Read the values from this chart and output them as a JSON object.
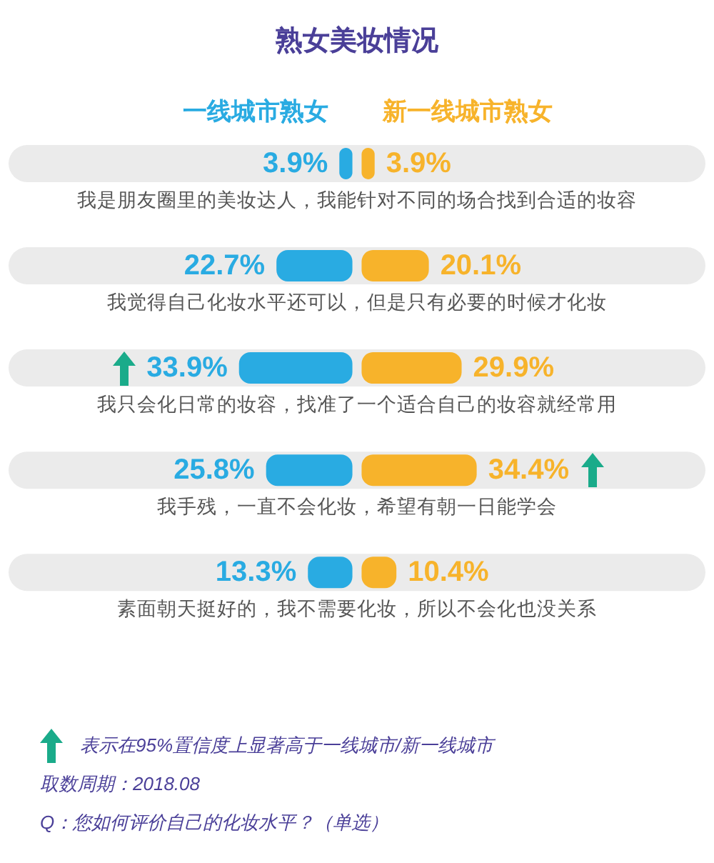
{
  "chart_data": [
    {
      "type": "bar",
      "title": "熟女美妆情况",
      "orientation": "horizontal",
      "categories": [
        "我是朋友圈里的美妆达人，我能针对不同的场合找到合适的妆容",
        "我觉得自己化妆水平还可以，但是只有必要的时候才化妆",
        "我只会化日常的妆容，找准了一个适合自己的妆容就经常用",
        "我手残，一直不会化妆，希望有朝一日能学会",
        "素面朝天挺好的，我不需要化妆，所以不会化也没关系"
      ],
      "series": [
        {
          "name": "一线城市熟女",
          "color": "#29abe2",
          "values": [
            3.9,
            22.7,
            33.9,
            25.8,
            13.3
          ],
          "value_labels": [
            "3.9%",
            "22.7%",
            "33.9%",
            "25.8%",
            "13.3%"
          ]
        }
      ],
      "annotations": [
        "表示在95%置信度上显著高于一线城市/新一线城市",
        "取数周期：2018.08",
        "Q：您如何评价自己的化妆水平？（单选）"
      ]
    },
    {
      "type": "bar",
      "orientation": "horizontal",
      "categories": [
        null,
        null,
        null,
        null,
        null
      ],
      "series": [
        {
          "name": "新一线城市熟女",
          "color": "#f7b32b",
          "values": [
            3.9,
            20.1,
            29.9,
            34.4,
            10.4
          ],
          "value_labels": [
            "3.9%",
            "20.1%",
            "29.9%",
            "34.4%",
            "10.4%"
          ]
        }
      ]
    }
  ]
}
